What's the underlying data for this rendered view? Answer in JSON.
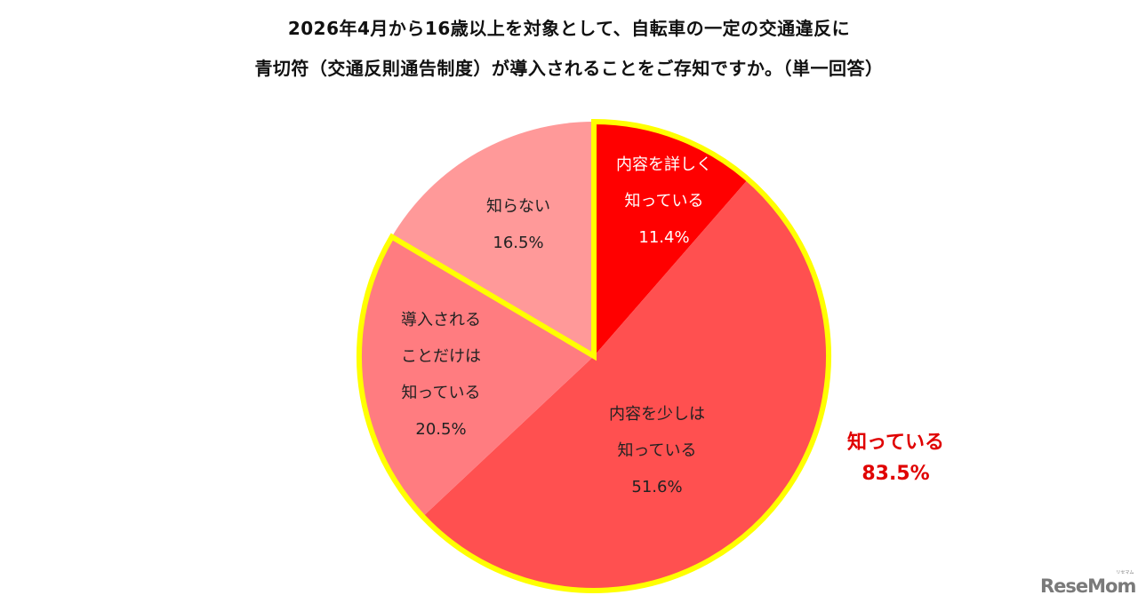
{
  "title": {
    "line1": "2026年4月から16歳以上を対象として、自転車の一定の交通違反に",
    "line2": "青切符（交通反則通告制度）が導入されることをご存知ですか。（単一回答）"
  },
  "slices": [
    {
      "line1": "内容を詳しく",
      "line2": "知っている",
      "line3": "",
      "pct": "11.4%",
      "color": "#FF0000",
      "text_color": "#FFFFFF"
    },
    {
      "line1": "内容を少しは",
      "line2": "知っている",
      "line3": "",
      "pct": "51.6%",
      "color": "#FF5050",
      "text_color": "#222222"
    },
    {
      "line1": "導入される",
      "line2": "ことだけは",
      "line3": "知っている",
      "pct": "20.5%",
      "color": "#FF7C80",
      "text_color": "#222222"
    },
    {
      "line1": "知らない",
      "line2": "",
      "line3": "",
      "pct": "16.5%",
      "color": "#FF9999",
      "text_color": "#222222"
    }
  ],
  "callout": {
    "label": "知っている",
    "value": "83.5%",
    "color": "#E00000",
    "outline_color": "#FFFF00"
  },
  "logo": {
    "text": "ReseMom",
    "kana": "リセマム"
  },
  "chart_data": {
    "type": "pie",
    "title": "2026年4月から16歳以上を対象として、自転車の一定の交通違反に青切符（交通反則通告制度）が導入されることをご存知ですか。（単一回答）",
    "categories": [
      "内容を詳しく知っている",
      "内容を少しは知っている",
      "導入されることだけは知っている",
      "知らない"
    ],
    "values": [
      11.4,
      51.6,
      20.5,
      16.5
    ],
    "unit": "%",
    "colors": [
      "#FF0000",
      "#FF5050",
      "#FF7C80",
      "#FF9999"
    ],
    "start_angle": "12 o'clock, clockwise",
    "annotations": [
      {
        "text": "知っている 83.5%",
        "note": "sum of first three slices, outlined in yellow"
      }
    ],
    "legend": "none (labels inside slices)"
  }
}
